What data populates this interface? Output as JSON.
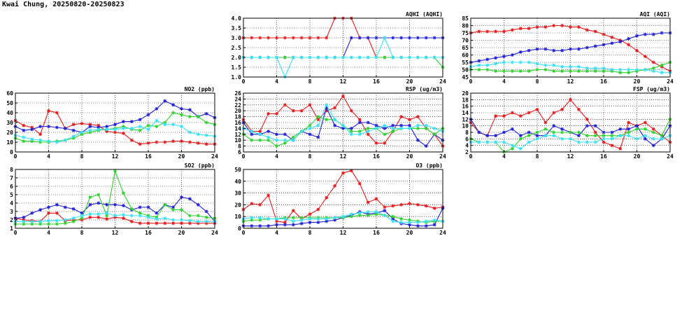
{
  "title": "Kwai Chung, 20250820-20250823",
  "colors": {
    "red": "#e41a1c",
    "blue": "#1f1fd6",
    "green": "#2ed12e",
    "cyan": "#38e0f5"
  },
  "chart_data": [
    {
      "id": "aqhi",
      "type": "line",
      "title": "AQHI (AQHI)",
      "ylim": [
        1,
        4
      ],
      "yticks": [
        "1.0",
        "1.5",
        "2.0",
        "2.5",
        "3.0",
        "3.5",
        "4.0"
      ],
      "xlim": [
        0,
        24
      ],
      "xticks": [
        "0",
        "4",
        "8",
        "12",
        "16",
        "20",
        "24"
      ],
      "grid": true,
      "x": [
        0,
        1,
        2,
        3,
        4,
        5,
        6,
        7,
        8,
        9,
        10,
        11,
        12,
        13,
        14,
        15,
        16,
        17,
        18,
        19,
        20,
        21,
        22,
        23,
        24
      ],
      "series": [
        {
          "color": "red",
          "values": [
            3,
            3,
            3,
            3,
            3,
            3,
            3,
            3,
            3,
            3,
            3,
            4,
            4,
            4,
            3,
            3,
            2,
            2,
            2,
            2,
            2,
            2,
            2,
            2,
            2
          ]
        },
        {
          "color": "blue",
          "values": [
            2,
            2,
            2,
            2,
            2,
            2,
            2,
            2,
            2,
            2,
            2,
            2,
            2,
            3,
            3,
            3,
            3,
            3,
            3,
            3,
            3,
            3,
            3,
            3,
            3
          ]
        },
        {
          "color": "green",
          "values": [
            2,
            2,
            2,
            2,
            2,
            2,
            2,
            2,
            2,
            2,
            2,
            2,
            2,
            2,
            2,
            2,
            2,
            2,
            2,
            2,
            2,
            2,
            2,
            2,
            1.5
          ]
        },
        {
          "color": "cyan",
          "values": [
            2,
            2,
            2,
            2,
            2,
            1,
            2,
            2,
            2,
            2,
            2,
            2,
            2,
            2,
            2,
            2,
            2,
            3,
            2,
            2,
            2,
            2,
            2,
            2,
            2
          ]
        }
      ]
    },
    {
      "id": "aqi",
      "type": "line",
      "title": "AQI (AQI)",
      "ylim": [
        45,
        85
      ],
      "yticks": [
        "45",
        "50",
        "55",
        "60",
        "65",
        "70",
        "75",
        "80",
        "85"
      ],
      "xlim": [
        0,
        24
      ],
      "xticks": [
        "0",
        "4",
        "8",
        "12",
        "16",
        "20",
        "24"
      ],
      "grid": true,
      "x": [
        0,
        1,
        2,
        3,
        4,
        5,
        6,
        7,
        8,
        9,
        10,
        11,
        12,
        13,
        14,
        15,
        16,
        17,
        18,
        19,
        20,
        21,
        22,
        23,
        24
      ],
      "series": [
        {
          "color": "red",
          "values": [
            75,
            76,
            76,
            76,
            76,
            77,
            78,
            78,
            79,
            79,
            80,
            80,
            79,
            79,
            77,
            76,
            74,
            72,
            70,
            67,
            63,
            59,
            55,
            52,
            49
          ]
        },
        {
          "color": "blue",
          "values": [
            55,
            56,
            57,
            58,
            59,
            60,
            62,
            63,
            64,
            64,
            63,
            63,
            64,
            64,
            65,
            66,
            67,
            68,
            69,
            71,
            73,
            74,
            74,
            75,
            75
          ]
        },
        {
          "color": "green",
          "values": [
            50,
            50,
            50,
            49,
            49,
            49,
            49,
            49,
            50,
            50,
            49,
            49,
            49,
            49,
            49,
            49,
            49,
            49,
            48,
            48,
            49,
            50,
            51,
            53,
            55
          ]
        },
        {
          "color": "cyan",
          "values": [
            52,
            53,
            53,
            54,
            55,
            55,
            55,
            55,
            54,
            53,
            53,
            52,
            52,
            52,
            51,
            51,
            51,
            50,
            50,
            50,
            50,
            50,
            49,
            48,
            48
          ]
        }
      ]
    },
    {
      "id": "no2",
      "type": "line",
      "title": "NO2 (ppb)",
      "ylim": [
        0,
        60
      ],
      "yticks": [
        "0",
        "10",
        "20",
        "30",
        "40",
        "50",
        "60"
      ],
      "xlim": [
        0,
        24
      ],
      "xticks": [
        "0",
        "4",
        "8",
        "12",
        "16",
        "20",
        "24"
      ],
      "grid": true,
      "x": [
        0,
        1,
        2,
        3,
        4,
        5,
        6,
        7,
        8,
        9,
        10,
        11,
        12,
        13,
        14,
        15,
        16,
        17,
        18,
        19,
        20,
        21,
        22,
        23,
        24
      ],
      "series": [
        {
          "color": "red",
          "values": [
            32,
            27,
            25,
            18,
            42,
            40,
            24,
            28,
            29,
            28,
            27,
            21,
            20,
            19,
            12,
            8,
            9,
            10,
            10,
            11,
            11,
            10,
            9,
            8,
            8
          ]
        },
        {
          "color": "blue",
          "values": [
            26,
            22,
            23,
            26,
            26,
            25,
            24,
            22,
            20,
            26,
            25,
            26,
            28,
            31,
            31,
            33,
            38,
            44,
            52,
            48,
            44,
            43,
            36,
            39,
            35
          ]
        },
        {
          "color": "green",
          "values": [
            14,
            11,
            11,
            10,
            10,
            11,
            12,
            14,
            18,
            20,
            22,
            23,
            24,
            26,
            23,
            22,
            27,
            26,
            30,
            40,
            38,
            36,
            36,
            30,
            28
          ]
        },
        {
          "color": "cyan",
          "values": [
            17,
            15,
            13,
            12,
            11,
            10,
            12,
            16,
            20,
            22,
            23,
            23,
            23,
            24,
            24,
            26,
            23,
            32,
            28,
            28,
            26,
            20,
            18,
            17,
            16
          ]
        }
      ]
    },
    {
      "id": "rsp",
      "type": "line",
      "title": "RSP (ug/m3)",
      "ylim": [
        6,
        26
      ],
      "yticks": [
        "6",
        "8",
        "10",
        "12",
        "14",
        "16",
        "18",
        "20",
        "22",
        "24",
        "26"
      ],
      "xlim": [
        0,
        24
      ],
      "xticks": [
        "0",
        "4",
        "8",
        "12",
        "16",
        "20",
        "24"
      ],
      "grid": true,
      "x": [
        0,
        1,
        2,
        3,
        4,
        5,
        6,
        7,
        8,
        9,
        10,
        11,
        12,
        13,
        14,
        15,
        16,
        17,
        18,
        19,
        20,
        21,
        22,
        23,
        24
      ],
      "series": [
        {
          "color": "red",
          "values": [
            17,
            13,
            13,
            19,
            19,
            22,
            20,
            20,
            22,
            17,
            20,
            21,
            25,
            20,
            17,
            12,
            9,
            9,
            13,
            18,
            17,
            18,
            14,
            12,
            8
          ]
        },
        {
          "color": "blue",
          "values": [
            16,
            12,
            12,
            13,
            12,
            12,
            10,
            13,
            12,
            11,
            21,
            15,
            14,
            14,
            16,
            16,
            15,
            14,
            15,
            15,
            15,
            10,
            8,
            12,
            10
          ]
        },
        {
          "color": "green",
          "values": [
            12,
            10,
            10,
            10,
            8,
            9,
            11,
            13,
            15,
            18,
            17,
            17,
            15,
            13,
            13,
            14,
            14,
            12,
            13,
            14,
            14,
            14,
            14,
            12,
            14
          ]
        },
        {
          "color": "cyan",
          "values": [
            14,
            13,
            12,
            11,
            10,
            10,
            10,
            13,
            14,
            15,
            22,
            17,
            15,
            12,
            12,
            13,
            14,
            15,
            14,
            14,
            14,
            15,
            15,
            14,
            13
          ]
        }
      ]
    },
    {
      "id": "fsp",
      "type": "line",
      "title": "FSP (ug/m3)",
      "ylim": [
        2,
        20
      ],
      "yticks": [
        "2",
        "4",
        "6",
        "8",
        "10",
        "12",
        "14",
        "16",
        "18",
        "20"
      ],
      "xlim": [
        0,
        24
      ],
      "xticks": [
        "0",
        "4",
        "8",
        "12",
        "16",
        "20",
        "24"
      ],
      "grid": true,
      "x": [
        0,
        1,
        2,
        3,
        4,
        5,
        6,
        7,
        8,
        9,
        10,
        11,
        12,
        13,
        14,
        15,
        16,
        17,
        18,
        19,
        20,
        21,
        22,
        23,
        24
      ],
      "series": [
        {
          "color": "red",
          "values": [
            11,
            8,
            7,
            13,
            13,
            14,
            13,
            14,
            15,
            11,
            14,
            15,
            18,
            15,
            12,
            8,
            5,
            4,
            3,
            11,
            10,
            11,
            9,
            7,
            5
          ]
        },
        {
          "color": "blue",
          "values": [
            12,
            8,
            7,
            7,
            8,
            9,
            7,
            8,
            7,
            7,
            10,
            9,
            8,
            7,
            10,
            10,
            8,
            8,
            9,
            9,
            10,
            6,
            4,
            6,
            10
          ]
        },
        {
          "color": "green",
          "values": [
            6,
            5,
            5,
            5,
            2,
            3,
            6,
            7,
            8,
            9,
            8,
            8,
            8,
            8,
            7,
            7,
            7,
            7,
            7,
            8,
            9,
            9,
            8,
            7,
            12
          ]
        },
        {
          "color": "cyan",
          "values": [
            5,
            5,
            5,
            5,
            5,
            4,
            3,
            5,
            6,
            7,
            7,
            6,
            6,
            5,
            5,
            5,
            6,
            6,
            7,
            7,
            6,
            7,
            6,
            6,
            7
          ]
        }
      ]
    },
    {
      "id": "so2",
      "type": "line",
      "title": "SO2 (ppb)",
      "ylim": [
        1,
        8
      ],
      "yticks": [
        "1",
        "2",
        "3",
        "4",
        "5",
        "6",
        "7",
        "8"
      ],
      "xlim": [
        0,
        24
      ],
      "xticks": [
        "0",
        "4",
        "8",
        "12",
        "16",
        "20",
        "24"
      ],
      "grid": true,
      "x": [
        0,
        1,
        2,
        3,
        4,
        5,
        6,
        7,
        8,
        9,
        10,
        11,
        12,
        13,
        14,
        15,
        16,
        17,
        18,
        19,
        20,
        21,
        22,
        23,
        24
      ],
      "series": [
        {
          "color": "red",
          "values": [
            2.2,
            2.0,
            1.9,
            1.8,
            2.8,
            2.8,
            1.9,
            2.0,
            2.0,
            2.3,
            2.3,
            2.1,
            2.3,
            2.2,
            1.8,
            1.6,
            1.6,
            1.6,
            1.6,
            1.6,
            1.6,
            1.6,
            1.6,
            1.6,
            1.6
          ]
        },
        {
          "color": "blue",
          "values": [
            2.2,
            2.3,
            2.8,
            3.2,
            3.5,
            3.8,
            3.5,
            3.3,
            2.8,
            3.8,
            4.0,
            3.8,
            3.8,
            3.7,
            3.2,
            3.5,
            3.5,
            2.8,
            3.8,
            3.5,
            4.7,
            4.5,
            3.8,
            3.0,
            1.8
          ]
        },
        {
          "color": "green",
          "values": [
            1.5,
            1.5,
            1.5,
            1.5,
            1.5,
            1.5,
            1.6,
            1.8,
            2.2,
            4.7,
            5.0,
            2.5,
            7.8,
            5.2,
            3.3,
            2.8,
            2.5,
            2.3,
            3.8,
            3.2,
            3.2,
            2.5,
            2.5,
            2.3,
            2.2
          ]
        },
        {
          "color": "cyan",
          "values": [
            1.8,
            1.8,
            1.8,
            1.8,
            1.9,
            1.9,
            2.0,
            2.2,
            2.5,
            2.7,
            2.7,
            2.8,
            2.5,
            2.6,
            2.5,
            2.5,
            2.3,
            2.1,
            2.2,
            2.0,
            2.0,
            1.9,
            1.8,
            1.8,
            1.8
          ]
        }
      ]
    },
    {
      "id": "o3",
      "type": "line",
      "title": "O3 (ppb)",
      "ylim": [
        0,
        50
      ],
      "yticks": [
        "0",
        "10",
        "20",
        "30",
        "40",
        "50"
      ],
      "xlim": [
        0,
        24
      ],
      "xticks": [
        "0",
        "4",
        "8",
        "12",
        "16",
        "20",
        "24"
      ],
      "grid": true,
      "x": [
        0,
        1,
        2,
        3,
        4,
        5,
        6,
        7,
        8,
        9,
        10,
        11,
        12,
        13,
        14,
        15,
        16,
        17,
        18,
        19,
        20,
        21,
        22,
        23,
        24
      ],
      "series": [
        {
          "color": "red",
          "values": [
            16,
            21,
            20,
            28,
            6,
            5,
            15,
            8,
            12,
            16,
            26,
            36,
            47,
            49,
            38,
            22,
            25,
            18,
            19,
            20,
            21,
            20,
            19,
            17,
            18
          ]
        },
        {
          "color": "blue",
          "values": [
            2,
            2,
            2,
            2,
            3,
            3,
            3,
            4,
            5,
            5,
            6,
            7,
            9,
            11,
            14,
            12,
            13,
            15,
            8,
            4,
            3,
            2,
            2,
            3,
            17
          ]
        },
        {
          "color": "green",
          "values": [
            6,
            7,
            7,
            8,
            8,
            9,
            9,
            9,
            9,
            9,
            9,
            9,
            9,
            10,
            11,
            11,
            12,
            11,
            10,
            8,
            7,
            6,
            5,
            6,
            6
          ]
        },
        {
          "color": "cyan",
          "values": [
            8,
            9,
            9,
            8,
            8,
            8,
            6,
            7,
            8,
            8,
            8,
            9,
            10,
            12,
            13,
            14,
            14,
            11,
            6,
            5,
            5,
            5,
            6,
            7,
            6
          ]
        }
      ]
    }
  ]
}
